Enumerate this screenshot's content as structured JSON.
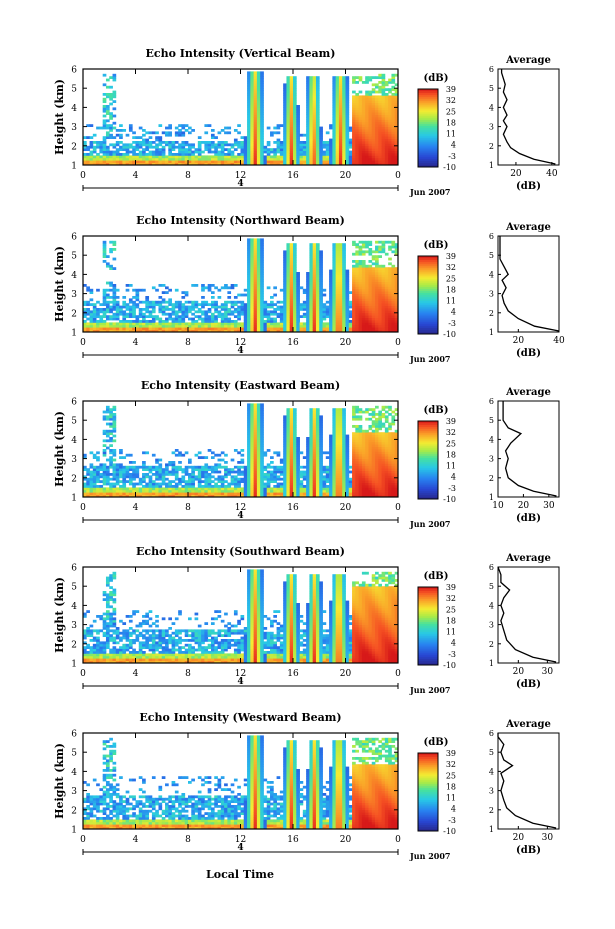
{
  "figure": {
    "xlabel": "Local Time",
    "date_label": "Jun 2007",
    "day_label": "4",
    "colorbar_unit": "(dB)",
    "colorbar_ticks": [
      "39",
      "32",
      "25",
      "18",
      "11",
      "4",
      "-3",
      "-10"
    ],
    "average_title": "Average",
    "average_xlabel": "(dB)",
    "heatmap_ylabel": "Height (km)"
  },
  "chart_data": [
    {
      "type": "heatmap",
      "title": "Echo Intensity (Vertical Beam)",
      "ylabel": "Height (km)",
      "x_ticks": [
        "0",
        "4",
        "8",
        "12",
        "16",
        "20",
        "0"
      ],
      "x_range_hours": [
        0,
        24
      ],
      "y_ticks": [
        "1",
        "2",
        "3",
        "4",
        "5",
        "6"
      ],
      "ylim": [
        1,
        6
      ],
      "colorbar": {
        "label": "(dB)",
        "ticks": [
          39,
          32,
          25,
          18,
          11,
          4,
          -3,
          -10
        ],
        "range": [
          -10,
          39
        ]
      },
      "features": {
        "low_layer_top_km": 2.2,
        "convective_towers_hours": [
          [
            12.7,
            13.5
          ],
          [
            15.6,
            16.1
          ],
          [
            17.3,
            17.8
          ],
          [
            19.2,
            20.0
          ]
        ],
        "stratiform_start_hour": 20.6,
        "stratiform_top_km": 4.6,
        "sparse_echo_top_km": 5.8
      },
      "average_profile": {
        "title": "Average",
        "xlabel": "(dB)",
        "x_ticks": [
          20,
          40
        ],
        "xlim": [
          10,
          44
        ],
        "ylim": [
          1,
          6
        ],
        "points": [
          [
            42,
            1.05
          ],
          [
            30,
            1.3
          ],
          [
            22,
            1.6
          ],
          [
            17,
            1.9
          ],
          [
            15,
            2.2
          ],
          [
            13,
            2.6
          ],
          [
            15,
            3.0
          ],
          [
            13,
            3.3
          ],
          [
            15,
            3.6
          ],
          [
            13,
            4.0
          ],
          [
            15,
            4.4
          ],
          [
            13,
            4.8
          ],
          [
            14,
            5.2
          ],
          [
            13,
            5.5
          ],
          [
            12,
            5.8
          ],
          [
            12,
            6.0
          ]
        ]
      }
    },
    {
      "type": "heatmap",
      "title": "Echo Intensity (Northward Beam)",
      "ylabel": "Height (km)",
      "x_ticks": [
        "0",
        "4",
        "8",
        "12",
        "16",
        "20",
        "0"
      ],
      "x_range_hours": [
        0,
        24
      ],
      "y_ticks": [
        "1",
        "2",
        "3",
        "4",
        "5",
        "6"
      ],
      "ylim": [
        1,
        6
      ],
      "colorbar": {
        "label": "(dB)",
        "ticks": [
          39,
          32,
          25,
          18,
          11,
          4,
          -3,
          -10
        ],
        "range": [
          -10,
          39
        ]
      },
      "features": {
        "low_layer_top_km": 2.6,
        "convective_towers_hours": [
          [
            12.7,
            13.5
          ],
          [
            15.6,
            16.1
          ],
          [
            17.4,
            17.9
          ],
          [
            19.1,
            19.9
          ]
        ],
        "stratiform_start_hour": 20.6,
        "stratiform_top_km": 4.4,
        "sparse_echo_top_km": 5.8
      },
      "average_profile": {
        "title": "Average",
        "xlabel": "(dB)",
        "x_ticks": [
          20,
          40
        ],
        "xlim": [
          10,
          40
        ],
        "ylim": [
          1,
          6
        ],
        "points": [
          [
            40,
            1.05
          ],
          [
            28,
            1.3
          ],
          [
            20,
            1.7
          ],
          [
            15,
            2.1
          ],
          [
            13,
            2.5
          ],
          [
            12,
            2.9
          ],
          [
            14,
            3.3
          ],
          [
            12,
            3.7
          ],
          [
            15,
            4.0
          ],
          [
            13,
            4.4
          ],
          [
            11,
            4.8
          ],
          [
            11,
            5.4
          ],
          [
            11,
            6.0
          ]
        ]
      }
    },
    {
      "type": "heatmap",
      "title": "Echo Intensity (Eastward Beam)",
      "ylabel": "Height (km)",
      "x_ticks": [
        "0",
        "4",
        "8",
        "12",
        "16",
        "20",
        "0"
      ],
      "x_range_hours": [
        0,
        24
      ],
      "y_ticks": [
        "1",
        "2",
        "3",
        "4",
        "5",
        "6"
      ],
      "ylim": [
        1,
        6
      ],
      "colorbar": {
        "label": "(dB)",
        "ticks": [
          39,
          32,
          25,
          18,
          11,
          4,
          -3,
          -10
        ],
        "range": [
          -10,
          39
        ]
      },
      "features": {
        "low_layer_top_km": 2.6,
        "convective_towers_hours": [
          [
            12.7,
            13.5
          ],
          [
            15.6,
            16.1
          ],
          [
            17.4,
            17.9
          ],
          [
            19.1,
            19.9
          ]
        ],
        "stratiform_start_hour": 20.6,
        "stratiform_top_km": 4.4,
        "sparse_echo_top_km": 5.8
      },
      "average_profile": {
        "title": "Average",
        "xlabel": "(dB)",
        "x_ticks": [
          10,
          20,
          30
        ],
        "xlim": [
          10,
          34
        ],
        "ylim": [
          1,
          6
        ],
        "points": [
          [
            33,
            1.05
          ],
          [
            24,
            1.3
          ],
          [
            18,
            1.6
          ],
          [
            14,
            2.0
          ],
          [
            13,
            2.5
          ],
          [
            14,
            3.0
          ],
          [
            13,
            3.4
          ],
          [
            15,
            3.8
          ],
          [
            19,
            4.3
          ],
          [
            14,
            4.6
          ],
          [
            12,
            5.0
          ],
          [
            12,
            5.5
          ],
          [
            12,
            6.0
          ]
        ]
      }
    },
    {
      "type": "heatmap",
      "title": "Echo Intensity (Southward Beam)",
      "ylabel": "Height (km)",
      "x_ticks": [
        "0",
        "4",
        "8",
        "12",
        "16",
        "20",
        "0"
      ],
      "x_range_hours": [
        0,
        24
      ],
      "y_ticks": [
        "1",
        "2",
        "3",
        "4",
        "5",
        "6"
      ],
      "ylim": [
        1,
        6
      ],
      "colorbar": {
        "label": "(dB)",
        "ticks": [
          39,
          32,
          25,
          18,
          11,
          4,
          -3,
          -10
        ],
        "range": [
          -10,
          39
        ]
      },
      "features": {
        "low_layer_top_km": 2.8,
        "convective_towers_hours": [
          [
            12.7,
            13.5
          ],
          [
            15.6,
            16.1
          ],
          [
            17.4,
            17.9
          ],
          [
            19.1,
            19.9
          ]
        ],
        "stratiform_start_hour": 20.6,
        "stratiform_top_km": 5.0,
        "sparse_echo_top_km": 5.8
      },
      "average_profile": {
        "title": "Average",
        "xlabel": "(dB)",
        "x_ticks": [
          20,
          30
        ],
        "xlim": [
          13,
          34
        ],
        "ylim": [
          1,
          6
        ],
        "points": [
          [
            33,
            1.05
          ],
          [
            25,
            1.3
          ],
          [
            19,
            1.7
          ],
          [
            16,
            2.2
          ],
          [
            15,
            2.7
          ],
          [
            14,
            3.2
          ],
          [
            15,
            3.6
          ],
          [
            14,
            4.0
          ],
          [
            15,
            4.4
          ],
          [
            17,
            4.8
          ],
          [
            14,
            5.2
          ],
          [
            14,
            5.6
          ],
          [
            13,
            6.0
          ]
        ]
      }
    },
    {
      "type": "heatmap",
      "title": "Echo Intensity (Westward Beam)",
      "ylabel": "Height (km)",
      "xlabel": "Local Time",
      "x_ticks": [
        "0",
        "4",
        "8",
        "12",
        "16",
        "20",
        "0"
      ],
      "x_range_hours": [
        0,
        24
      ],
      "y_ticks": [
        "1",
        "2",
        "3",
        "4",
        "5",
        "6"
      ],
      "ylim": [
        1,
        6
      ],
      "colorbar": {
        "label": "(dB)",
        "ticks": [
          39,
          32,
          25,
          18,
          11,
          4,
          -3,
          -10
        ],
        "range": [
          -10,
          39
        ]
      },
      "features": {
        "low_layer_top_km": 2.8,
        "convective_towers_hours": [
          [
            12.7,
            13.5
          ],
          [
            15.6,
            16.1
          ],
          [
            17.4,
            17.9
          ],
          [
            19.1,
            19.9
          ]
        ],
        "stratiform_start_hour": 20.6,
        "stratiform_top_km": 4.4,
        "sparse_echo_top_km": 5.8
      },
      "average_profile": {
        "title": "Average",
        "xlabel": "(dB)",
        "x_ticks": [
          20,
          30
        ],
        "xlim": [
          13,
          34
        ],
        "ylim": [
          1,
          6
        ],
        "points": [
          [
            33,
            1.05
          ],
          [
            25,
            1.3
          ],
          [
            19,
            1.7
          ],
          [
            16,
            2.1
          ],
          [
            15,
            2.5
          ],
          [
            14,
            3.0
          ],
          [
            15,
            3.5
          ],
          [
            14,
            3.9
          ],
          [
            18,
            4.3
          ],
          [
            15,
            4.6
          ],
          [
            14,
            5.0
          ],
          [
            15,
            5.4
          ],
          [
            13,
            5.8
          ],
          [
            13,
            6.0
          ]
        ]
      }
    }
  ]
}
